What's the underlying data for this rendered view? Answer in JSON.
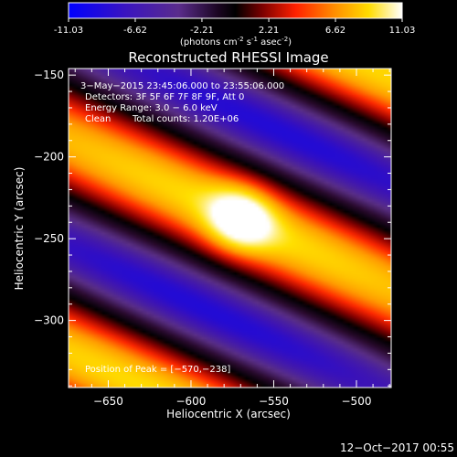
{
  "colorbar": {
    "ticks": [
      "-11.03",
      "-6.62",
      "-2.21",
      "2.21",
      "6.62",
      "11.03"
    ],
    "units_prefix": "(photons cm",
    "units_exp1": "-2",
    "units_mid": " s",
    "units_exp2": "-1",
    "units_mid2": " asec",
    "units_exp3": "-2",
    "units_suffix": ")",
    "range": [
      -11.03,
      11.03
    ]
  },
  "chart_data": {
    "type": "heatmap",
    "title": "Reconstructed RHESSI Image",
    "xlabel": "Heliocentric X (arcsec)",
    "ylabel": "Heliocentric Y (arcsec)",
    "xlim": [
      -674,
      -479
    ],
    "ylim": [
      -341,
      -146
    ],
    "xticks": [
      -650,
      -600,
      -550,
      -500
    ],
    "yticks": [
      -150,
      -200,
      -250,
      -300
    ],
    "xtick_labels": [
      "−650",
      "−600",
      "−550",
      "−500"
    ],
    "ytick_labels": [
      "−150",
      "−200",
      "−250",
      "−300"
    ],
    "peak": {
      "x": -570,
      "y": -238,
      "value": 11.03
    },
    "value_range": [
      -11.03,
      11.03
    ],
    "colormap": [
      "#0000ff",
      "#3b12b8",
      "#5a2f86",
      "#2a0a2e",
      "#000000",
      "#8a0000",
      "#ff2600",
      "#ff9a00",
      "#ffe000",
      "#ffffff"
    ],
    "annotations": {
      "time": "3−May−2015 23:45:06.000 to 23:55:06.000",
      "detectors": "Detectors: 3F 5F 6F 7F 8F 9F, Att 0",
      "energy": "Energy Range: 3.0 − 6.0 keV",
      "method": "Clean",
      "counts": "Total counts: 1.20E+06",
      "peak_label": "Position of Peak = [−570,−238]"
    }
  },
  "footer": {
    "timestamp": "12−Oct−2017 00:55"
  }
}
